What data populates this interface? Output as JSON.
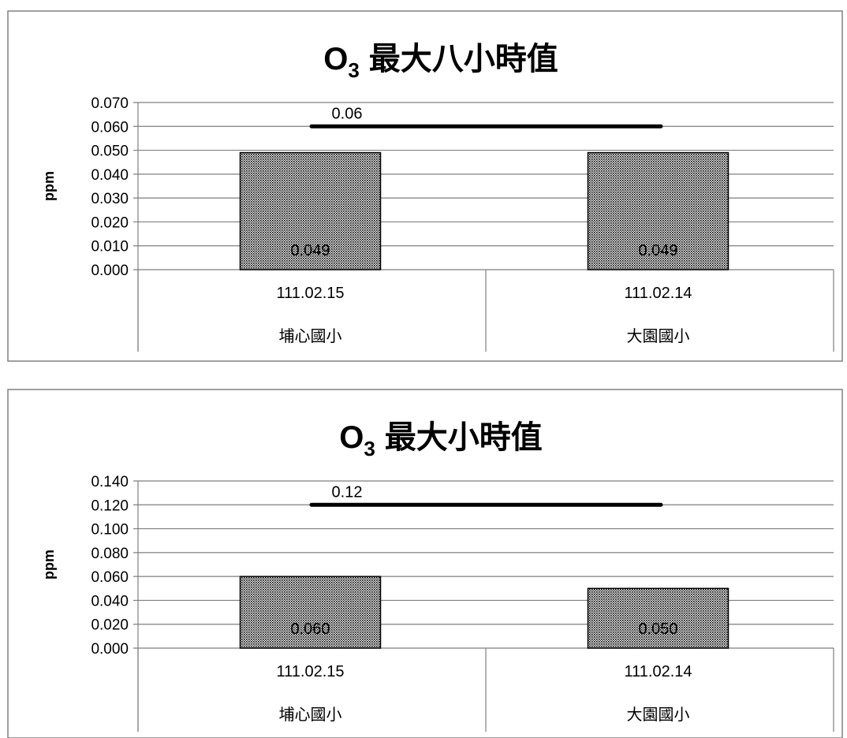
{
  "chart_data": [
    {
      "type": "bar",
      "title": "最大八小時值",
      "title_prefix": "O",
      "title_subscript": "3",
      "ylabel": "ppm",
      "xlabel": "",
      "ylim": [
        0,
        0.07
      ],
      "yticks": [
        "0.000",
        "0.010",
        "0.020",
        "0.030",
        "0.040",
        "0.050",
        "0.060",
        "0.070"
      ],
      "categories": [
        "111.02.15",
        "111.02.14"
      ],
      "groups": [
        "埔心國小",
        "大園國小"
      ],
      "values": [
        0.049,
        0.049
      ],
      "value_labels": [
        "0.049",
        "0.049"
      ],
      "reference_line": {
        "value": 0.06,
        "label": "0.06"
      },
      "grid": true,
      "bar_pattern": "dotted-gray"
    },
    {
      "type": "bar",
      "title": "最大小時值",
      "title_prefix": "O",
      "title_subscript": "3",
      "ylabel": "ppm",
      "xlabel": "",
      "ylim": [
        0,
        0.14
      ],
      "yticks": [
        "0.000",
        "0.020",
        "0.040",
        "0.060",
        "0.080",
        "0.100",
        "0.120",
        "0.140"
      ],
      "categories": [
        "111.02.15",
        "111.02.14"
      ],
      "groups": [
        "埔心國小",
        "大園國小"
      ],
      "values": [
        0.06,
        0.05
      ],
      "value_labels": [
        "0.060",
        "0.050"
      ],
      "reference_line": {
        "value": 0.12,
        "label": "0.12"
      },
      "grid": true,
      "bar_pattern": "dotted-gray"
    }
  ]
}
